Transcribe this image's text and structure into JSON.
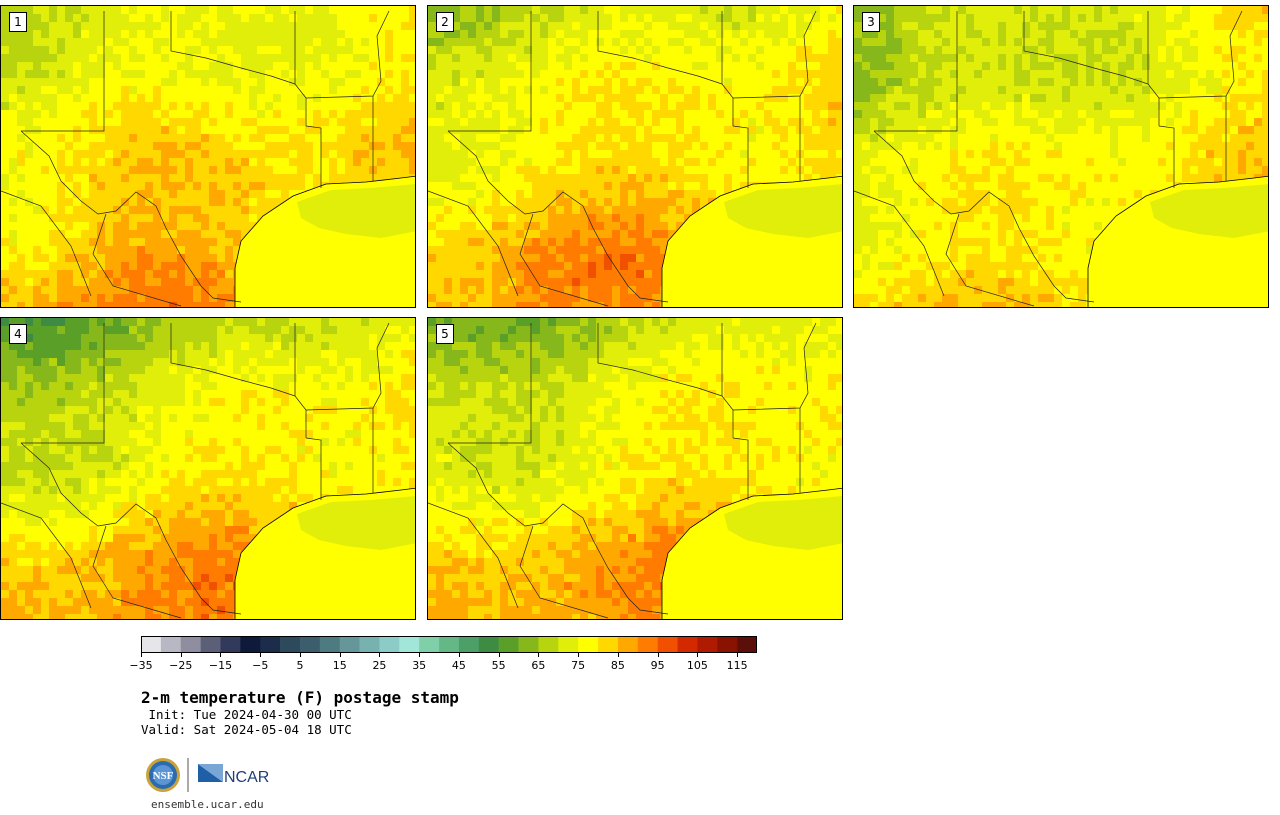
{
  "panels": [
    {
      "label": "1",
      "seed": 11,
      "warm": 0.55,
      "green": 0.15
    },
    {
      "label": "2",
      "seed": 23,
      "warm": 0.6,
      "green": 0.25
    },
    {
      "label": "3",
      "seed": 37,
      "warm": 0.35,
      "green": 0.45
    },
    {
      "label": "4",
      "seed": 41,
      "warm": 0.62,
      "green": 0.7
    },
    {
      "label": "5",
      "seed": 59,
      "warm": 0.58,
      "green": 0.55
    }
  ],
  "colorbar": {
    "colors": [
      "#e6e6ea",
      "#b8b8c4",
      "#8e8ea0",
      "#5c5f78",
      "#323a5c",
      "#0f1a3a",
      "#1c2d4c",
      "#2c4a5c",
      "#3c5e6c",
      "#4e7a82",
      "#64969a",
      "#78b2b0",
      "#8cccc6",
      "#a2e6da",
      "#7fd0a8",
      "#64b886",
      "#4c9f66",
      "#3e8c44",
      "#5aa028",
      "#86b81c",
      "#b8d40e",
      "#e0ee0a",
      "#ffff00",
      "#ffd800",
      "#ffa800",
      "#ff7c00",
      "#f05000",
      "#d42800",
      "#b01a00",
      "#8a1200",
      "#5c0e08"
    ],
    "tick_labels": [
      "−35",
      "−25",
      "−15",
      "−5",
      "5",
      "15",
      "25",
      "35",
      "45",
      "55",
      "65",
      "75",
      "85",
      "95",
      "105",
      "115"
    ]
  },
  "title": "2-m temperature (F) postage stamp",
  "init": " Init: Tue 2024-04-30 00 UTC",
  "valid": "Valid: Sat 2024-05-04 18 UTC",
  "logos": {
    "nsf": "NSF",
    "ncar": "NCAR"
  },
  "url": "ensemble.ucar.edu"
}
